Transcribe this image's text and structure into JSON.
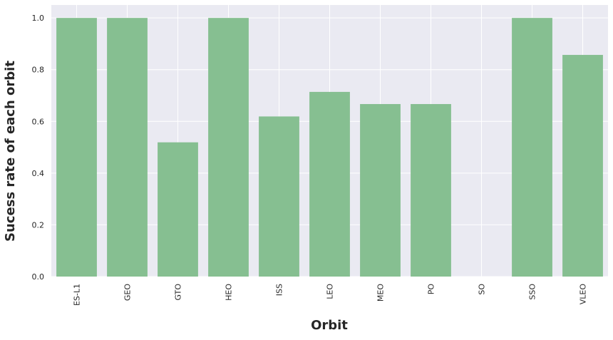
{
  "chart_data": {
    "type": "bar",
    "xlabel": "Orbit",
    "ylabel": "Sucess rate of each orbit",
    "categories": [
      "ES-L1",
      "GEO",
      "GTO",
      "HEO",
      "ISS",
      "LEO",
      "MEO",
      "PO",
      "SO",
      "SSO",
      "VLEO"
    ],
    "values": [
      1.0,
      1.0,
      0.519,
      1.0,
      0.619,
      0.714,
      0.667,
      0.667,
      0.0,
      1.0,
      0.857
    ],
    "ylim": [
      0,
      1.05
    ],
    "yticks": [
      "0.0",
      "0.2",
      "0.4",
      "0.6",
      "0.8",
      "1.0"
    ],
    "grid": true,
    "colors": {
      "bar": "#86bf91",
      "plot_background": "#eaeaf2",
      "grid": "#ffffff",
      "text": "#262626"
    }
  }
}
